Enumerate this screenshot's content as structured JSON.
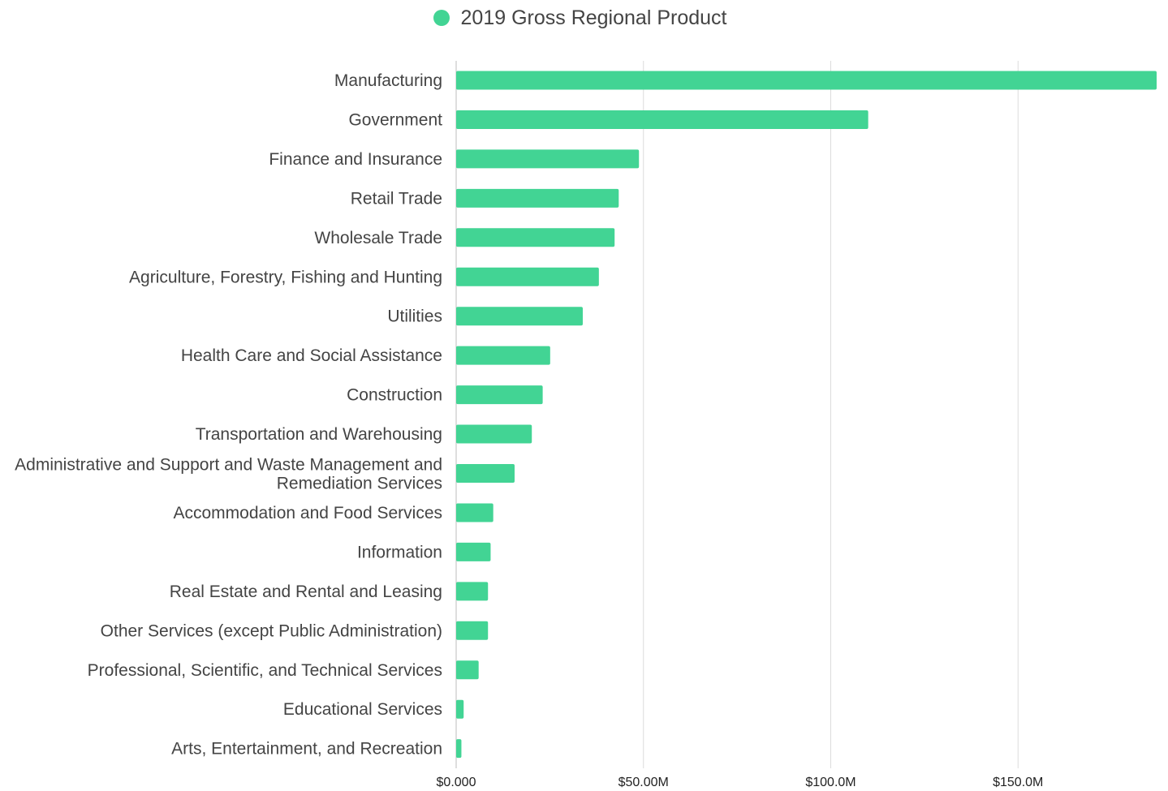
{
  "legend": {
    "label": "2019 Gross Regional Product",
    "color": "#42d494"
  },
  "chart_data": {
    "type": "bar",
    "orientation": "horizontal",
    "title": "",
    "xlabel": "",
    "ylabel": "",
    "grid": true,
    "legend_position": "top-center",
    "bar_color": "#42d494",
    "xlim": [
      0,
      187
    ],
    "x_ticks": [
      {
        "value": 0,
        "label": "$0.000"
      },
      {
        "value": 50,
        "label": "$50.00M"
      },
      {
        "value": 100,
        "label": "$100.0M"
      },
      {
        "value": 150,
        "label": "$150.0M"
      }
    ],
    "series": [
      {
        "name": "2019 Gross Regional Product",
        "unit": "$M"
      }
    ],
    "categories": [
      {
        "label": [
          "Manufacturing"
        ],
        "value": 187
      },
      {
        "label": [
          "Government"
        ],
        "value": 110
      },
      {
        "label": [
          "Finance and Insurance"
        ],
        "value": 48.8
      },
      {
        "label": [
          "Retail Trade"
        ],
        "value": 43.4
      },
      {
        "label": [
          "Wholesale Trade"
        ],
        "value": 42.3
      },
      {
        "label": [
          "Agriculture, Forestry, Fishing and Hunting"
        ],
        "value": 38.1
      },
      {
        "label": [
          "Utilities"
        ],
        "value": 33.8
      },
      {
        "label": [
          "Health Care and Social Assistance"
        ],
        "value": 25.1
      },
      {
        "label": [
          "Construction"
        ],
        "value": 23.1
      },
      {
        "label": [
          "Transportation and Warehousing"
        ],
        "value": 20.2
      },
      {
        "label": [
          "Administrative and Support and Waste Management and",
          "Remediation Services"
        ],
        "value": 15.6
      },
      {
        "label": [
          "Accommodation and Food Services"
        ],
        "value": 9.9
      },
      {
        "label": [
          "Information"
        ],
        "value": 9.2
      },
      {
        "label": [
          "Real Estate and Rental and Leasing"
        ],
        "value": 8.5
      },
      {
        "label": [
          "Other Services (except Public Administration)"
        ],
        "value": 8.5
      },
      {
        "label": [
          "Professional, Scientific, and Technical Services"
        ],
        "value": 6.0
      },
      {
        "label": [
          "Educational Services"
        ],
        "value": 2.0
      },
      {
        "label": [
          "Arts, Entertainment, and Recreation"
        ],
        "value": 1.4
      }
    ]
  }
}
